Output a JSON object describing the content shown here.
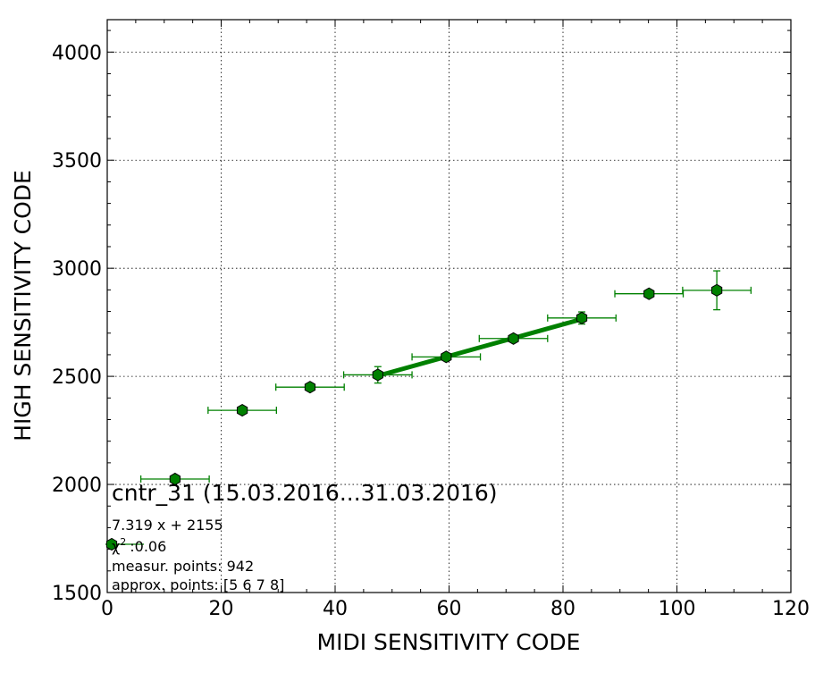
{
  "chart_data": {
    "type": "scatter",
    "title": "",
    "xlabel": "MIDI SENSITIVITY CODE",
    "ylabel": "HIGH SENSITIVITY CODE",
    "xlim": [
      0,
      120
    ],
    "ylim": [
      1500,
      4150
    ],
    "xticks": [
      0,
      20,
      40,
      60,
      80,
      100,
      120
    ],
    "yticks": [
      1500,
      2000,
      2500,
      3000,
      3500,
      4000
    ],
    "grid": true,
    "colors": {
      "series": "#008000",
      "marker_edge": "#000000",
      "fit_line": "#008000"
    },
    "series": [
      {
        "marker": "hexagon",
        "points": [
          {
            "x": 11.9,
            "y": 2025,
            "xerr": 6.0,
            "yerr": 0
          },
          {
            "x": 23.7,
            "y": 2343,
            "xerr": 6.0,
            "yerr": 0
          },
          {
            "x": 35.6,
            "y": 2450,
            "xerr": 6.0,
            "yerr": 12
          },
          {
            "x": 47.5,
            "y": 2507,
            "xerr": 6.0,
            "yerr": 38
          },
          {
            "x": 59.5,
            "y": 2590,
            "xerr": 6.0,
            "yerr": 12
          },
          {
            "x": 71.3,
            "y": 2675,
            "xerr": 6.0,
            "yerr": 10
          },
          {
            "x": 83.3,
            "y": 2770,
            "xerr": 6.0,
            "yerr": 28
          },
          {
            "x": 95.1,
            "y": 2882,
            "xerr": 6.0,
            "yerr": 15
          },
          {
            "x": 107.0,
            "y": 2898,
            "xerr": 6.0,
            "yerr": 90
          }
        ]
      }
    ],
    "fit": {
      "slope": 7.319,
      "intercept": 2155,
      "x_from": 47.5,
      "x_to": 83.3
    },
    "annotation": {
      "title": "cntr_31 (15.03.2016...31.03.2016)",
      "equation": "7.319 x + 2155",
      "chi_symbol": "χ",
      "chi_sup": "2",
      "chi_value": ":0.06",
      "measur": "measur. points: 942",
      "approx": "approx. points: [5 6 7 8]"
    }
  }
}
